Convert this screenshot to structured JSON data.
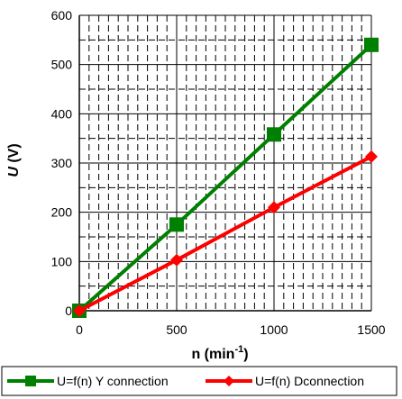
{
  "chart_data": {
    "type": "line",
    "xlabel": "n (min",
    "xlabel_sup": "-1",
    "xlabel_close": ")",
    "ylabel": "U (V)",
    "x_ticks": [
      "0",
      "500",
      "1000",
      "1500"
    ],
    "y_ticks": [
      "0",
      "100",
      "200",
      "300",
      "400",
      "500",
      "600"
    ],
    "xlim": [
      0,
      1500
    ],
    "ylim": [
      0,
      600
    ],
    "grid": "dashed minor grid, solid major lines every 100 V and 500 min-1",
    "legend_position": "bottom",
    "series": [
      {
        "name": "U=f(n) Y connection",
        "color": "#008000",
        "marker": "square",
        "x": [
          0,
          500,
          1000,
          1500
        ],
        "y": [
          0,
          175,
          358,
          540
        ]
      },
      {
        "name": "U=f(n) Dconnection",
        "color": "#ff0000",
        "marker": "diamond",
        "x": [
          0,
          500,
          1000,
          1500
        ],
        "y": [
          0,
          103,
          210,
          313
        ]
      }
    ]
  }
}
